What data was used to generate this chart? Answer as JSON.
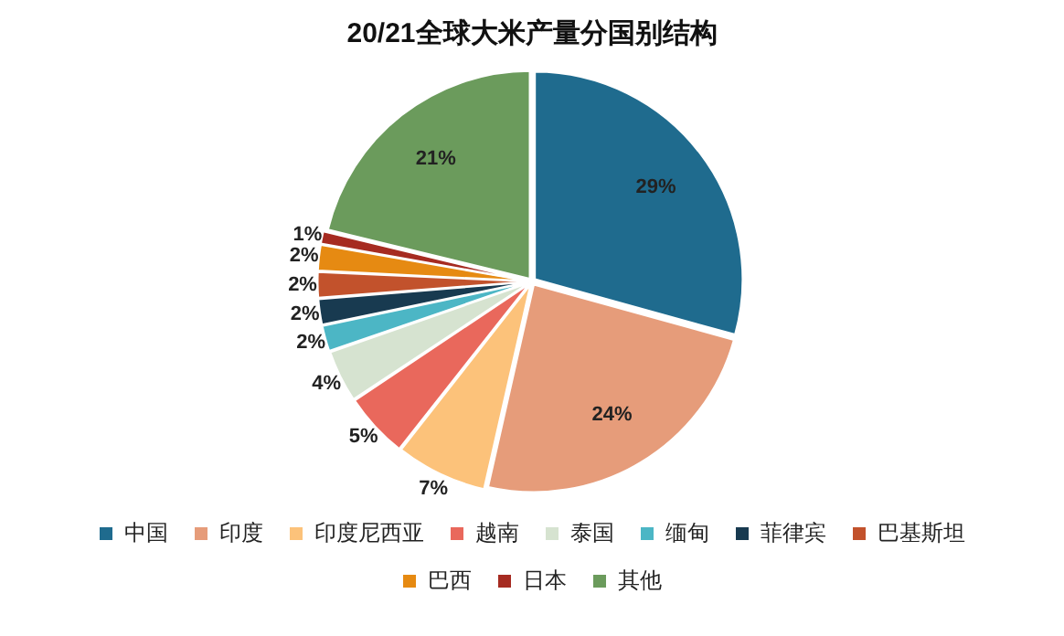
{
  "chart_data": {
    "type": "pie",
    "title": "20/21全球大米产量分国别结构",
    "categories": [
      "中国",
      "印度",
      "印度尼西亚",
      "越南",
      "泰国",
      "缅甸",
      "菲律宾",
      "巴基斯坦",
      "巴西",
      "日本",
      "其他"
    ],
    "values": [
      29,
      24,
      7,
      5,
      4,
      2,
      2,
      2,
      2,
      1,
      21
    ],
    "colors": [
      "#1f6b8e",
      "#e69c7a",
      "#fcc27a",
      "#e9685c",
      "#d6e3d0",
      "#4cb6c5",
      "#183a50",
      "#c2522c",
      "#e68a12",
      "#a62b21",
      "#6b9b5c"
    ],
    "value_labels": [
      "29%",
      "24%",
      "7%",
      "5%",
      "4%",
      "2%",
      "2%",
      "2%",
      "2%",
      "1%",
      "21%"
    ],
    "legend": "bottom"
  }
}
